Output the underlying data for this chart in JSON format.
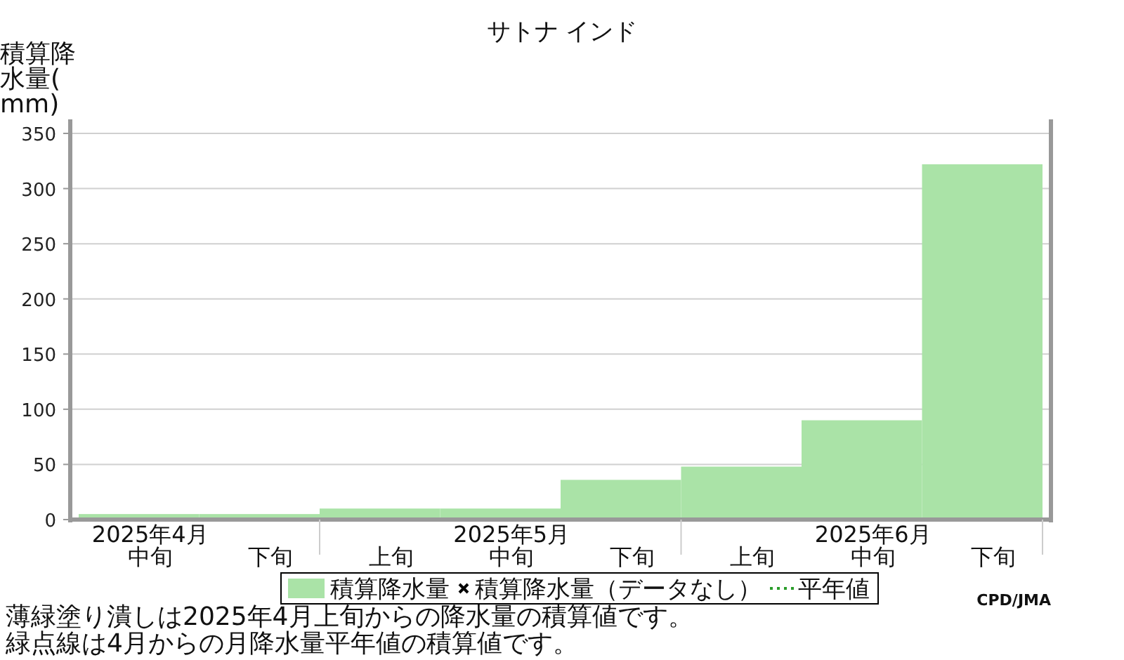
{
  "chart_data": {
    "type": "bar",
    "title": "サトナ インド",
    "ylabel": "積算降水量(mm)",
    "categories": [
      "中旬",
      "下旬",
      "上旬",
      "中旬",
      "下旬",
      "上旬",
      "中旬",
      "下旬"
    ],
    "series": [
      {
        "name": "積算降水量",
        "color": "#aae3a7",
        "values": [
          5,
          5,
          10,
          10,
          36,
          48,
          90,
          322
        ]
      },
      {
        "name": "積算降水量（データなし）",
        "type": "scatter",
        "marker": "cross",
        "color": "#000000",
        "values": [
          null,
          null,
          null,
          null,
          null,
          null,
          null,
          null
        ]
      },
      {
        "name": "平年値",
        "type": "line",
        "line_style": "dotted",
        "color": "#2a9d2a",
        "values": [
          null,
          null,
          null,
          null,
          null,
          null,
          null,
          null
        ]
      }
    ],
    "ylim": [
      0,
      350
    ],
    "yticks": [
      0,
      50,
      100,
      150,
      200,
      250,
      300,
      350
    ],
    "grid": "y",
    "legend": "bottom",
    "annotations": [
      "2025年4月",
      "2025年5月",
      "2025年6月",
      "薄緑塗り潰しは2025年4月上旬からの降水量の積算値です。",
      "緑点線は4月からの月降水量平年値の積算値です。",
      "CPD/JMA"
    ]
  }
}
